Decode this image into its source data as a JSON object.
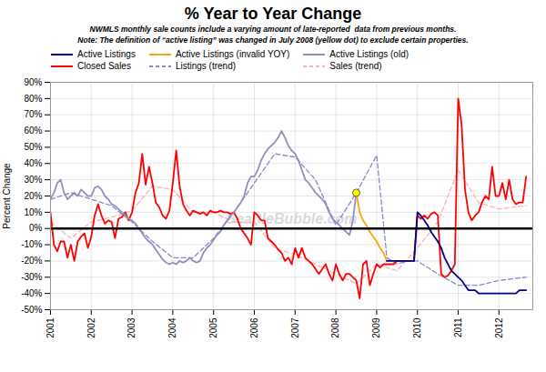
{
  "chart_data": {
    "type": "line",
    "title": "% Year to Year Change",
    "subtitle": [
      "NWMLS monthly sale counts include a varying amount of late-reported  data from previous months.",
      "Note: The definition of “active listing” was changed in July 2008 (yellow dot) to exclude certain properties."
    ],
    "ylabel": "Percent Change",
    "xlim": [
      2001.0,
      2012.83
    ],
    "ylim": [
      -0.5,
      0.9
    ],
    "xticks": [
      2001,
      2002,
      2003,
      2004,
      2005,
      2006,
      2007,
      2008,
      2009,
      2010,
      2011,
      2012
    ],
    "yticks": [
      {
        "value": -0.5,
        "label": "-50%"
      },
      {
        "value": -0.4,
        "label": "-40%"
      },
      {
        "value": -0.3,
        "label": "-30%"
      },
      {
        "value": -0.2,
        "label": "-20%"
      },
      {
        "value": -0.1,
        "label": "-10%"
      },
      {
        "value": 0.0,
        "label": "0%"
      },
      {
        "value": 0.1,
        "label": "10%"
      },
      {
        "value": 0.2,
        "label": "20%"
      },
      {
        "value": 0.3,
        "label": "30%"
      },
      {
        "value": 0.4,
        "label": "40%"
      },
      {
        "value": 0.5,
        "label": "50%"
      },
      {
        "value": 0.6,
        "label": "60%"
      },
      {
        "value": 0.7,
        "label": "70%"
      },
      {
        "value": 0.8,
        "label": "80%"
      },
      {
        "value": 0.9,
        "label": "90%"
      }
    ],
    "grid": true,
    "legend": "top",
    "annotations": [
      {
        "text": "SeattleBubble.com"
      }
    ],
    "hlines": [
      0
    ],
    "series": [
      {
        "name": "Active Listings",
        "color": "#00008B",
        "line_style": "solid",
        "x": [
          2009.25,
          2009.333,
          2009.417,
          2009.5,
          2009.583,
          2009.667,
          2009.75,
          2009.833,
          2009.917,
          2010.0,
          2010.083,
          2010.167,
          2010.25,
          2010.333,
          2010.417,
          2010.5,
          2010.583,
          2010.667,
          2010.75,
          2010.833,
          2010.917,
          2011.0,
          2011.083,
          2011.167,
          2011.25,
          2011.333,
          2011.417,
          2011.5,
          2011.583,
          2011.667,
          2011.75,
          2011.833,
          2011.917,
          2012.0,
          2012.083,
          2012.167,
          2012.25,
          2012.333,
          2012.417,
          2012.5,
          2012.583,
          2012.667
        ],
        "values": [
          -0.2,
          -0.2,
          -0.2,
          -0.2,
          -0.2,
          -0.2,
          -0.2,
          -0.2,
          -0.2,
          0.1,
          0.08,
          0.05,
          0.02,
          -0.02,
          -0.05,
          -0.08,
          -0.12,
          -0.18,
          -0.22,
          -0.26,
          -0.28,
          -0.3,
          -0.32,
          -0.35,
          -0.38,
          -0.38,
          -0.38,
          -0.4,
          -0.4,
          -0.4,
          -0.4,
          -0.4,
          -0.4,
          -0.4,
          -0.4,
          -0.4,
          -0.4,
          -0.4,
          -0.4,
          -0.38,
          -0.38,
          -0.38
        ]
      },
      {
        "name": "Active Listings (invalid YOY)",
        "color": "#FFA500",
        "line_style": "solid",
        "x": [
          2008.5,
          2008.583,
          2008.667,
          2008.75,
          2008.833,
          2008.917,
          2009.0,
          2009.083,
          2009.167,
          2009.25
        ],
        "values": [
          0.22,
          0.1,
          0.05,
          0.02,
          -0.02,
          -0.05,
          -0.08,
          -0.12,
          -0.15,
          -0.2
        ]
      },
      {
        "name": "Active Listings (old)",
        "color": "#9090C0",
        "line_style": "solid",
        "x": [
          2001.0,
          2001.083,
          2001.167,
          2001.25,
          2001.333,
          2001.417,
          2001.5,
          2001.583,
          2001.667,
          2001.75,
          2001.833,
          2001.917,
          2002.0,
          2002.083,
          2002.167,
          2002.25,
          2002.333,
          2002.417,
          2002.5,
          2002.583,
          2002.667,
          2002.75,
          2002.833,
          2002.917,
          2003.0,
          2003.083,
          2003.167,
          2003.25,
          2003.333,
          2003.417,
          2003.5,
          2003.583,
          2003.667,
          2003.75,
          2003.833,
          2003.917,
          2004.0,
          2004.083,
          2004.167,
          2004.25,
          2004.333,
          2004.417,
          2004.5,
          2004.583,
          2004.667,
          2004.75,
          2004.833,
          2004.917,
          2005.0,
          2005.083,
          2005.167,
          2005.25,
          2005.333,
          2005.417,
          2005.5,
          2005.583,
          2005.667,
          2005.75,
          2005.833,
          2005.917,
          2006.0,
          2006.083,
          2006.167,
          2006.25,
          2006.333,
          2006.417,
          2006.5,
          2006.583,
          2006.667,
          2006.75,
          2006.833,
          2006.917,
          2007.0,
          2007.083,
          2007.167,
          2007.25,
          2007.333,
          2007.417,
          2007.5,
          2007.583,
          2007.667,
          2007.75,
          2007.833,
          2007.917,
          2008.0,
          2008.083,
          2008.167,
          2008.25,
          2008.333,
          2008.417,
          2008.5
        ],
        "values": [
          0.18,
          0.22,
          0.28,
          0.3,
          0.22,
          0.18,
          0.2,
          0.22,
          0.2,
          0.24,
          0.22,
          0.2,
          0.2,
          0.25,
          0.26,
          0.24,
          0.2,
          0.18,
          0.15,
          0.14,
          0.12,
          0.1,
          0.08,
          0.06,
          0.05,
          0.03,
          0.0,
          -0.03,
          -0.06,
          -0.08,
          -0.1,
          -0.13,
          -0.16,
          -0.19,
          -0.21,
          -0.22,
          -0.21,
          -0.22,
          -0.2,
          -0.21,
          -0.2,
          -0.18,
          -0.2,
          -0.21,
          -0.2,
          -0.15,
          -0.12,
          -0.1,
          -0.07,
          -0.04,
          -0.02,
          0.02,
          0.05,
          0.08,
          0.1,
          0.13,
          0.16,
          0.2,
          0.28,
          0.32,
          0.32,
          0.36,
          0.42,
          0.46,
          0.49,
          0.51,
          0.53,
          0.56,
          0.6,
          0.56,
          0.51,
          0.48,
          0.46,
          0.42,
          0.36,
          0.3,
          0.28,
          0.25,
          0.22,
          0.2,
          0.18,
          0.15,
          0.1,
          0.06,
          0.04,
          0.02,
          0.0,
          -0.02,
          -0.04,
          0.05,
          0.22
        ]
      },
      {
        "name": "Closed Sales",
        "color": "#FF0000",
        "line_style": "solid",
        "x": [
          2001.0,
          2001.083,
          2001.167,
          2001.25,
          2001.333,
          2001.417,
          2001.5,
          2001.583,
          2001.667,
          2001.75,
          2001.833,
          2001.917,
          2002.0,
          2002.083,
          2002.167,
          2002.25,
          2002.333,
          2002.417,
          2002.5,
          2002.583,
          2002.667,
          2002.75,
          2002.833,
          2002.917,
          2003.0,
          2003.083,
          2003.167,
          2003.25,
          2003.333,
          2003.417,
          2003.5,
          2003.583,
          2003.667,
          2003.75,
          2003.833,
          2003.917,
          2004.0,
          2004.083,
          2004.167,
          2004.25,
          2004.333,
          2004.417,
          2004.5,
          2004.583,
          2004.667,
          2004.75,
          2004.833,
          2004.917,
          2005.0,
          2005.083,
          2005.167,
          2005.25,
          2005.333,
          2005.417,
          2005.5,
          2005.583,
          2005.667,
          2005.75,
          2005.833,
          2005.917,
          2006.0,
          2006.083,
          2006.167,
          2006.25,
          2006.333,
          2006.417,
          2006.5,
          2006.583,
          2006.667,
          2006.75,
          2006.833,
          2006.917,
          2007.0,
          2007.083,
          2007.167,
          2007.25,
          2007.333,
          2007.417,
          2007.5,
          2007.583,
          2007.667,
          2007.75,
          2007.833,
          2007.917,
          2008.0,
          2008.083,
          2008.167,
          2008.25,
          2008.333,
          2008.417,
          2008.5,
          2008.583,
          2008.667,
          2008.75,
          2008.833,
          2008.917,
          2009.0,
          2009.083,
          2009.167,
          2009.25,
          2009.333,
          2009.417,
          2009.5,
          2009.583,
          2009.667,
          2009.75,
          2009.833,
          2009.917,
          2010.0,
          2010.083,
          2010.167,
          2010.25,
          2010.333,
          2010.417,
          2010.5,
          2010.583,
          2010.667,
          2010.75,
          2010.833,
          2010.917,
          2011.0,
          2011.083,
          2011.167,
          2011.25,
          2011.333,
          2011.417,
          2011.5,
          2011.583,
          2011.667,
          2011.75,
          2011.833,
          2011.917,
          2012.0,
          2012.083,
          2012.167,
          2012.25,
          2012.333,
          2012.417,
          2012.5,
          2012.583,
          2012.667
        ],
        "values": [
          0.1,
          -0.1,
          -0.14,
          -0.08,
          -0.08,
          -0.18,
          -0.1,
          -0.2,
          -0.08,
          -0.05,
          -0.03,
          -0.12,
          -0.05,
          0.08,
          0.15,
          0.08,
          0.03,
          0.05,
          0.04,
          -0.06,
          0.06,
          0.07,
          0.1,
          0.05,
          0.1,
          0.22,
          0.28,
          0.46,
          0.27,
          0.38,
          0.28,
          0.16,
          0.13,
          0.08,
          0.06,
          0.11,
          0.28,
          0.48,
          0.26,
          0.15,
          0.11,
          0.08,
          0.11,
          0.1,
          0.09,
          0.1,
          0.08,
          0.11,
          0.1,
          0.1,
          0.11,
          0.1,
          0.1,
          0.09,
          0.1,
          0.06,
          0.0,
          -0.03,
          -0.06,
          -0.1,
          0.1,
          0.08,
          0.05,
          0.05,
          -0.06,
          -0.08,
          -0.1,
          -0.13,
          -0.15,
          -0.2,
          -0.18,
          -0.22,
          -0.12,
          -0.18,
          -0.12,
          -0.18,
          -0.2,
          -0.22,
          -0.25,
          -0.28,
          -0.25,
          -0.22,
          -0.28,
          -0.32,
          -0.22,
          -0.28,
          -0.32,
          -0.28,
          -0.28,
          -0.3,
          -0.32,
          -0.43,
          -0.22,
          -0.2,
          -0.35,
          -0.28,
          -0.22,
          -0.24,
          -0.22,
          -0.22,
          -0.22,
          -0.22,
          -0.2,
          -0.2,
          -0.2,
          -0.2,
          -0.2,
          -0.2,
          0.08,
          0.06,
          0.08,
          0.06,
          0.09,
          0.1,
          0.08,
          -0.28,
          -0.3,
          -0.29,
          -0.26,
          -0.22,
          0.8,
          0.64,
          0.24,
          0.1,
          0.05,
          0.08,
          0.1,
          0.16,
          0.2,
          0.18,
          0.38,
          0.2,
          0.2,
          0.28,
          0.18,
          0.3,
          0.18,
          0.15,
          0.16,
          0.16,
          0.32
        ]
      },
      {
        "name": "Listings (trend)",
        "color": "#8888CC",
        "line_style": "dashed",
        "x": [
          2001.0,
          2001.5,
          2002.0,
          2002.5,
          2003.0,
          2003.5,
          2004.0,
          2004.5,
          2005.0,
          2005.5,
          2006.0,
          2006.5,
          2007.0,
          2007.5,
          2008.0,
          2008.5,
          2009.0,
          2009.25,
          2009.5,
          2009.75,
          2010.0,
          2010.5,
          2011.0,
          2011.5,
          2012.0,
          2012.667
        ],
        "values": [
          0.18,
          0.22,
          0.18,
          0.14,
          0.04,
          -0.08,
          -0.18,
          -0.18,
          -0.06,
          0.1,
          0.28,
          0.46,
          0.44,
          0.3,
          0.02,
          0.22,
          0.45,
          -0.18,
          -0.22,
          -0.2,
          -0.2,
          -0.28,
          -0.35,
          -0.35,
          -0.32,
          -0.3
        ]
      },
      {
        "name": "Sales (trend)",
        "color": "#FFB0B0",
        "line_style": "dashed",
        "x": [
          2001.0,
          2001.5,
          2002.0,
          2002.5,
          2003.0,
          2003.5,
          2004.0,
          2004.5,
          2005.0,
          2005.5,
          2006.0,
          2006.5,
          2007.0,
          2007.5,
          2008.0,
          2008.5,
          2009.0,
          2009.5,
          2010.0,
          2010.5,
          2011.0,
          2011.5,
          2012.0,
          2012.667
        ],
        "values": [
          0.04,
          -0.06,
          0.04,
          0.07,
          0.11,
          0.26,
          0.24,
          0.1,
          0.1,
          0.04,
          0.04,
          -0.12,
          -0.16,
          -0.22,
          -0.28,
          -0.34,
          -0.22,
          -0.26,
          -0.12,
          0.04,
          0.36,
          0.16,
          0.12,
          0.14
        ]
      },
      {
        "type": "scatter",
        "marker": "circle",
        "color": "yellow",
        "x": [
          2008.5
        ],
        "values": [
          0.22
        ]
      }
    ]
  }
}
